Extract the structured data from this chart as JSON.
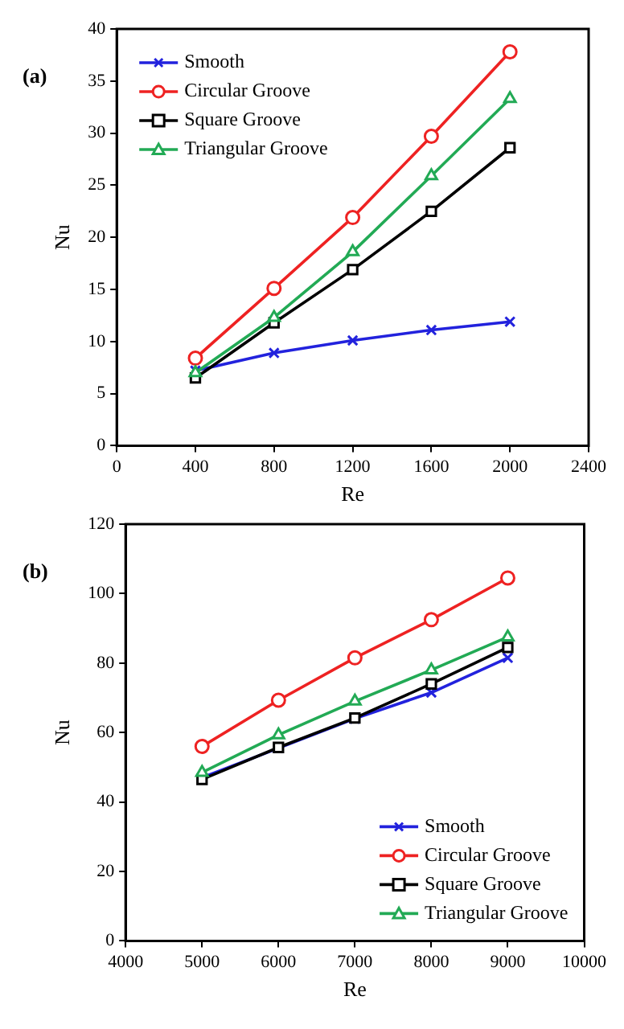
{
  "chart_data": [
    {
      "type": "line",
      "annotations": [
        "(a)"
      ],
      "xlabel": "Re",
      "ylabel": "Nu",
      "x": [
        400,
        800,
        1200,
        1600,
        2000
      ],
      "xlim": [
        0,
        2400
      ],
      "xticks": [
        0,
        400,
        800,
        1200,
        1600,
        2000,
        2400
      ],
      "ylim": [
        0,
        40
      ],
      "yticks": [
        0,
        5,
        10,
        15,
        20,
        25,
        30,
        35,
        40
      ],
      "grid": false,
      "legend": "top left",
      "series": [
        {
          "name": "Smooth",
          "color": "#2222dd",
          "marker": "cross",
          "values": [
            7.2,
            8.9,
            10.1,
            11.1,
            11.9
          ]
        },
        {
          "name": "Circular Groove",
          "color": "#ee2222",
          "marker": "circle",
          "values": [
            8.4,
            15.1,
            21.9,
            29.7,
            37.8
          ]
        },
        {
          "name": "Square Groove",
          "color": "#000000",
          "marker": "square",
          "values": [
            6.5,
            11.8,
            16.9,
            22.5,
            28.6
          ]
        },
        {
          "name": "Triangular Groove",
          "color": "#22aa55",
          "marker": "triangle",
          "values": [
            7.0,
            12.3,
            18.6,
            25.9,
            33.3
          ]
        }
      ]
    },
    {
      "type": "line",
      "annotations": [
        "(b)"
      ],
      "xlabel": "Re",
      "ylabel": "Nu",
      "x": [
        5000,
        6000,
        7000,
        8000,
        9000
      ],
      "xlim": [
        4000,
        10000
      ],
      "xticks": [
        4000,
        5000,
        6000,
        7000,
        8000,
        9000,
        10000
      ],
      "ylim": [
        0,
        120
      ],
      "yticks": [
        0,
        20,
        40,
        60,
        80,
        100,
        120
      ],
      "grid": false,
      "legend": "bottom right",
      "series": [
        {
          "name": "Smooth",
          "color": "#2222dd",
          "marker": "cross",
          "values": [
            47,
            55.5,
            64,
            71.5,
            81.5
          ]
        },
        {
          "name": "Circular Groove",
          "color": "#ee2222",
          "marker": "circle",
          "values": [
            56,
            69.3,
            81.5,
            92.5,
            104.5
          ]
        },
        {
          "name": "Square Groove",
          "color": "#000000",
          "marker": "square",
          "values": [
            46.5,
            55.7,
            64.2,
            74,
            84.5
          ]
        },
        {
          "name": "Triangular Groove",
          "color": "#22aa55",
          "marker": "triangle",
          "values": [
            48.5,
            59.3,
            69,
            78,
            87.5
          ]
        }
      ]
    }
  ]
}
